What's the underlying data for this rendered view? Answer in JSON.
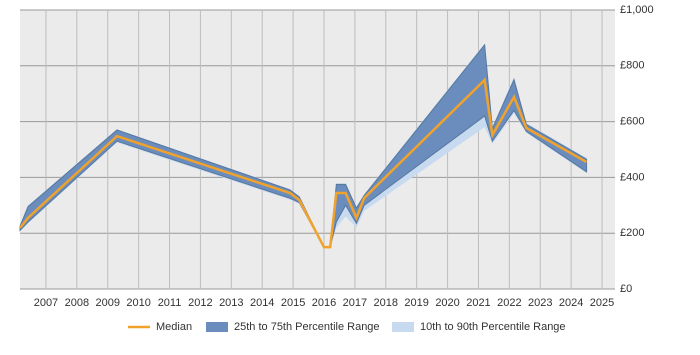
{
  "chart_data": {
    "type": "range-line",
    "x": [
      2006.16,
      2006.42,
      2009.3,
      2014.9,
      2015.2,
      2016.0,
      2016.2,
      2016.4,
      2016.7,
      2017.05,
      2017.3,
      2021.2,
      2021.45,
      2022.15,
      2022.55,
      2024.5
    ],
    "series": [
      {
        "name": "Median",
        "color": "#f0a22b",
        "values": [
          219,
          255,
          548,
          344,
          319,
          150,
          150,
          344,
          344,
          255,
          326,
          749,
          552,
          688,
          577,
          455
        ]
      },
      {
        "name": "25th to 75th Percentile Range",
        "color": "#6b8dbd",
        "low": [
          210,
          240,
          530,
          325,
          310,
          150,
          150,
          240,
          300,
          235,
          300,
          620,
          530,
          640,
          565,
          420
        ],
        "high": [
          225,
          295,
          570,
          355,
          330,
          150,
          150,
          375,
          375,
          290,
          335,
          875,
          575,
          750,
          590,
          465
        ]
      },
      {
        "name": "10th to 90th Percentile Range",
        "color": "#c7daef",
        "low": [
          205,
          235,
          525,
          320,
          305,
          150,
          150,
          220,
          260,
          220,
          280,
          580,
          520,
          630,
          560,
          415
        ],
        "high": [
          228,
          300,
          572,
          358,
          333,
          150,
          150,
          378,
          378,
          295,
          340,
          880,
          580,
          760,
          595,
          470
        ]
      }
    ],
    "xlim": [
      2006.16,
      2025.42
    ],
    "xticks": [
      2007,
      2008,
      2009,
      2010,
      2011,
      2012,
      2013,
      2014,
      2015,
      2016,
      2017,
      2018,
      2019,
      2020,
      2021,
      2022,
      2023,
      2024,
      2025
    ],
    "ylim": [
      0,
      1000
    ],
    "yticks": [
      {
        "value": 0,
        "label": "£0"
      },
      {
        "value": 200,
        "label": "£200"
      },
      {
        "value": 400,
        "label": "£400"
      },
      {
        "value": 600,
        "label": "£600"
      },
      {
        "value": 800,
        "label": "£800"
      },
      {
        "value": 1000,
        "label": "£1,000"
      }
    ],
    "grid": true
  }
}
